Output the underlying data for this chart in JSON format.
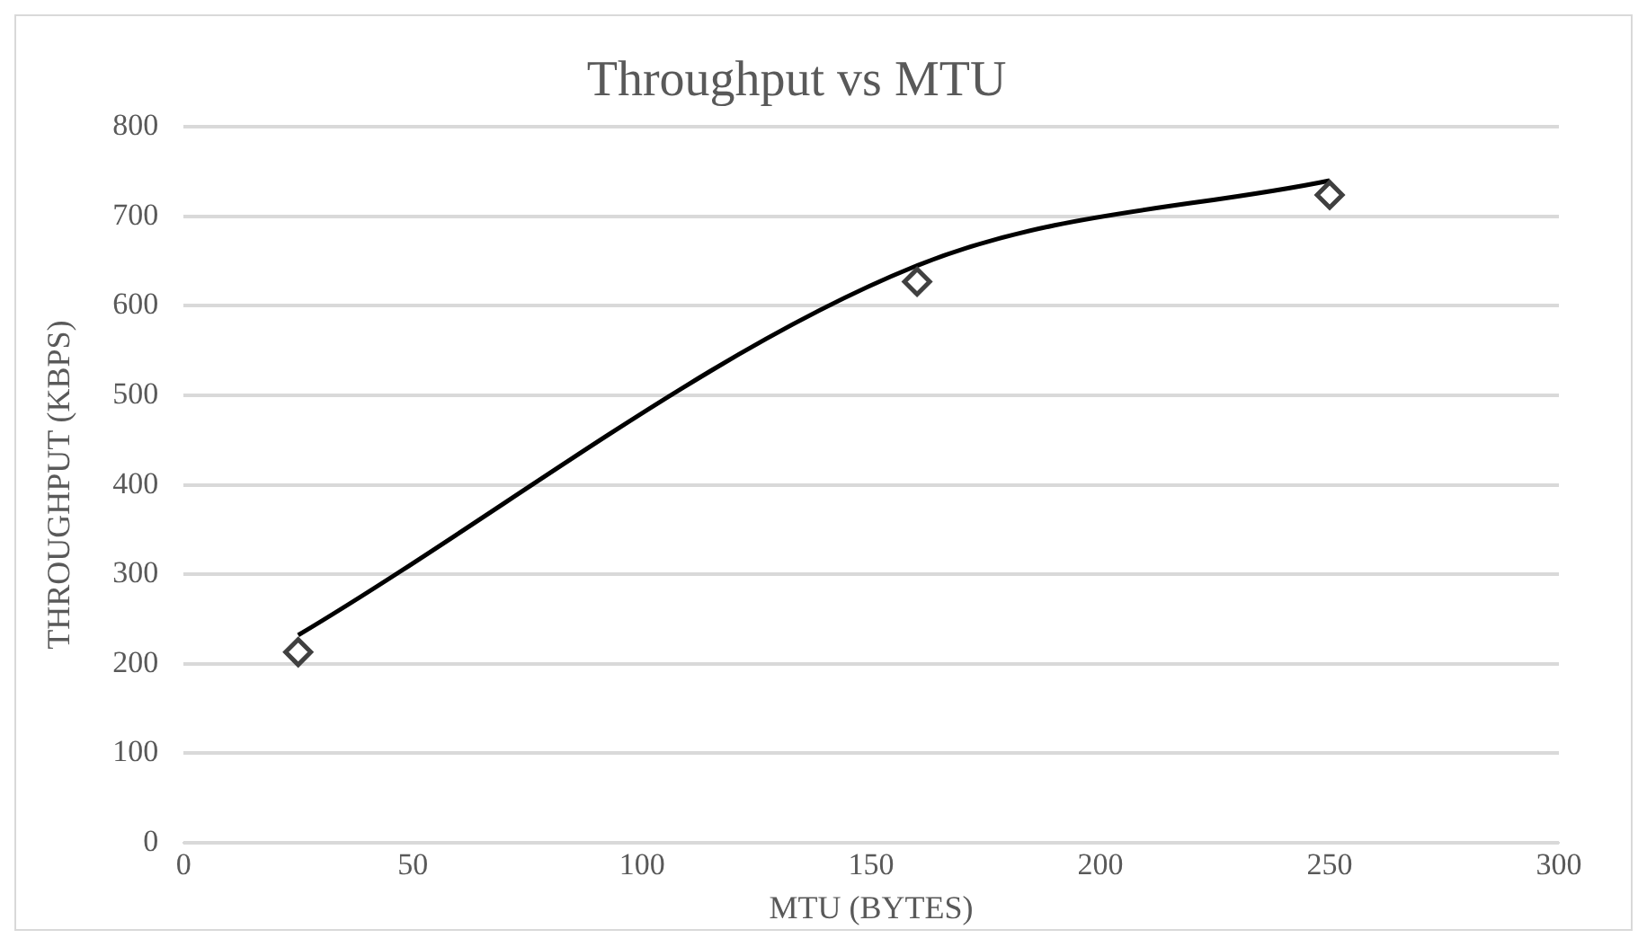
{
  "chart_data": {
    "type": "scatter",
    "title": "Throughput vs MTU",
    "xlabel": "MTU (BYTES)",
    "ylabel": "THROUGHPUT (KBPS)",
    "series": [
      {
        "type": "line",
        "color": "#000000",
        "marker": "none",
        "x": [
          25,
          160,
          250
        ],
        "values": [
          232,
          645,
          740
        ]
      },
      {
        "type": "scatter",
        "color": "#404040",
        "marker": "diamond",
        "x": [
          25,
          160,
          250
        ],
        "values": [
          213,
          627,
          724
        ]
      }
    ],
    "xlim": [
      0,
      300
    ],
    "xticks": [
      0,
      50,
      100,
      150,
      200,
      250,
      300
    ],
    "ylim": [
      0,
      800
    ],
    "yticks": [
      0,
      100,
      200,
      300,
      400,
      500,
      600,
      700,
      800
    ],
    "grid": "y",
    "legend": false
  }
}
